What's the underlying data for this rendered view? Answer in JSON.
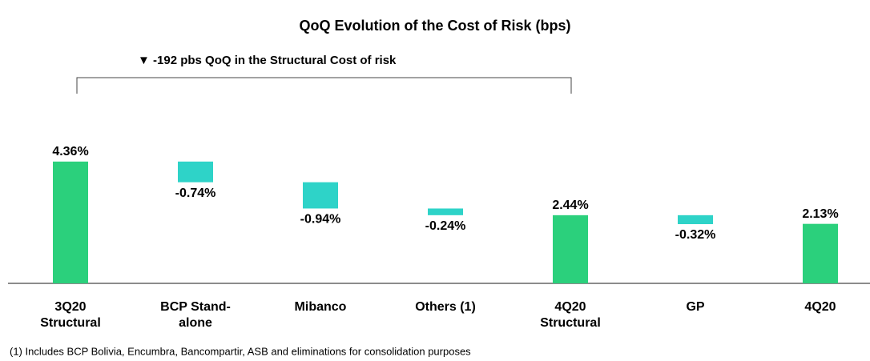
{
  "chart_data": {
    "type": "waterfall",
    "title": "QoQ Evolution of the Cost of Risk (bps)",
    "annotation": "▼ -192 pbs QoQ in the Structural Cost of risk",
    "footnote": "(1) Includes BCP Bolivia, Encumbra, Bancompartir, ASB and eliminations for consolidation purposes",
    "categories": [
      "3Q20 Structural",
      "BCP Stand-alone",
      "Mibanco",
      "Others (1)",
      "4Q20 Structural",
      "GP",
      "4Q20"
    ],
    "values": [
      4.36,
      -0.74,
      -0.94,
      -0.24,
      2.44,
      -0.32,
      2.13
    ],
    "value_labels": [
      "4.36%",
      "-0.74%",
      "-0.94%",
      "-0.24%",
      "2.44%",
      "-0.32%",
      "2.13%"
    ],
    "totals": [
      true,
      false,
      false,
      false,
      true,
      false,
      true
    ],
    "total_color": "#2bd07c",
    "change_color": "#2ed3c8"
  }
}
